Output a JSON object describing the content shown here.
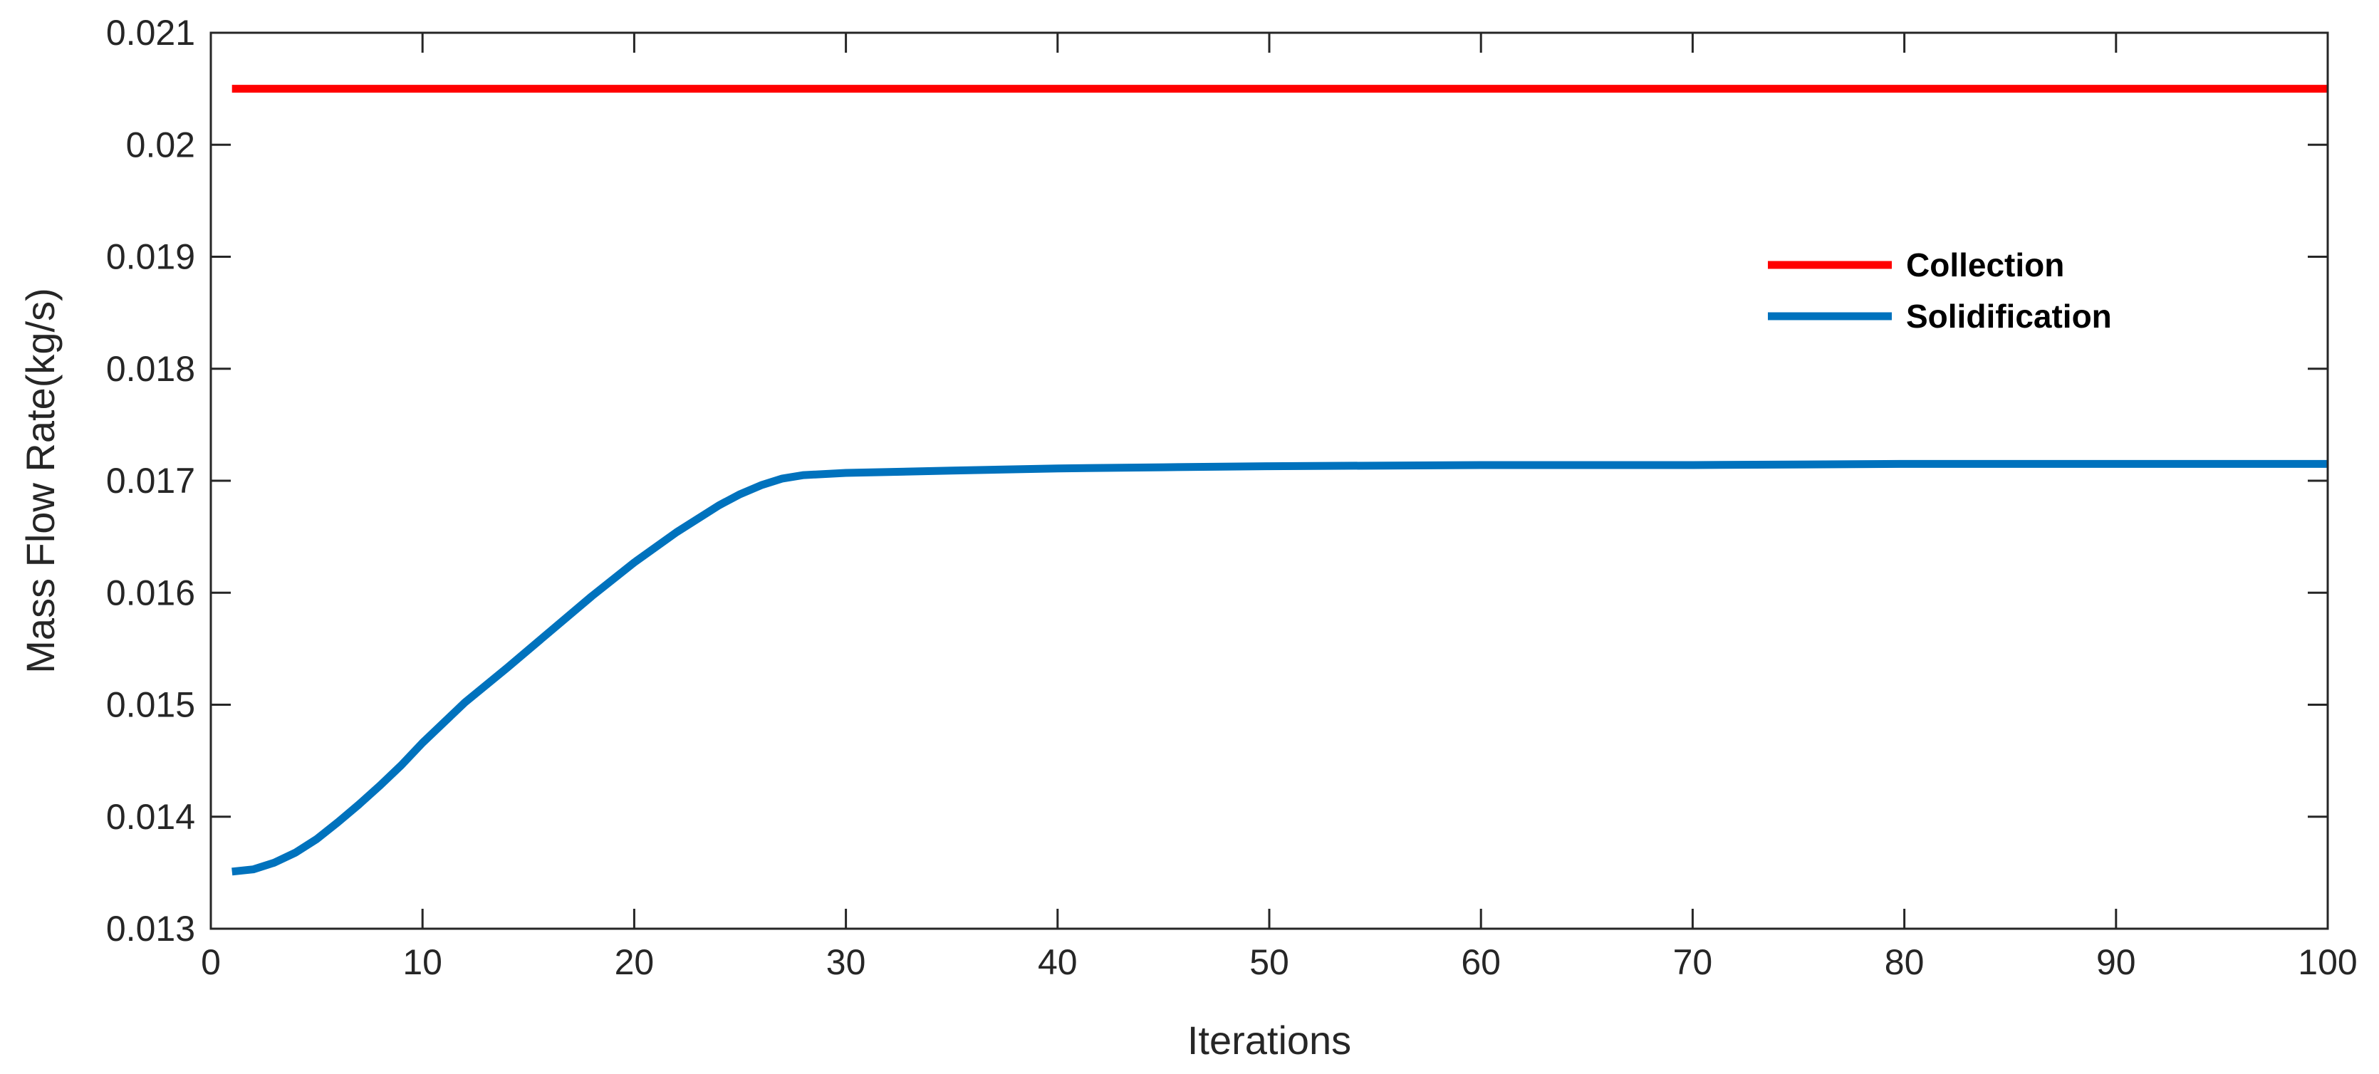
{
  "chart_data": {
    "type": "line",
    "xlabel": "Iterations",
    "ylabel": "Mass Flow Rate(kg/s)",
    "xlim": [
      0,
      100
    ],
    "ylim": [
      0.013,
      0.021
    ],
    "xticks": [
      0,
      10,
      20,
      30,
      40,
      50,
      60,
      70,
      80,
      90,
      100
    ],
    "xtick_labels": [
      "0",
      "10",
      "20",
      "30",
      "40",
      "50",
      "60",
      "70",
      "80",
      "90",
      "100"
    ],
    "yticks": [
      0.013,
      0.014,
      0.015,
      0.016,
      0.017,
      0.018,
      0.019,
      0.02,
      0.021
    ],
    "ytick_labels": [
      "0.013",
      "0.014",
      "0.015",
      "0.016",
      "0.017",
      "0.018",
      "0.019",
      "0.02",
      "0.021"
    ],
    "grid": false,
    "box": true,
    "legend_position": "top-right",
    "series": [
      {
        "name": "Collection",
        "color": "#ff0000",
        "x": [
          1,
          100
        ],
        "y": [
          0.0205,
          0.0205
        ]
      },
      {
        "name": "Solidification",
        "color": "#0072bd",
        "x": [
          1,
          2,
          3,
          4,
          5,
          6,
          7,
          8,
          9,
          10,
          12,
          14,
          16,
          18,
          20,
          22,
          24,
          25,
          26,
          27,
          28,
          30,
          35,
          40,
          45,
          50,
          60,
          70,
          80,
          90,
          100
        ],
        "y": [
          0.01351,
          0.01353,
          0.01359,
          0.01368,
          0.0138,
          0.01395,
          0.01411,
          0.01428,
          0.01446,
          0.01466,
          0.01502,
          0.01533,
          0.01565,
          0.01597,
          0.01627,
          0.01654,
          0.01678,
          0.01688,
          0.01696,
          0.01702,
          0.01705,
          0.01707,
          0.01709,
          0.01711,
          0.01712,
          0.01713,
          0.01714,
          0.01714,
          0.01715,
          0.01715,
          0.01715
        ]
      }
    ]
  }
}
